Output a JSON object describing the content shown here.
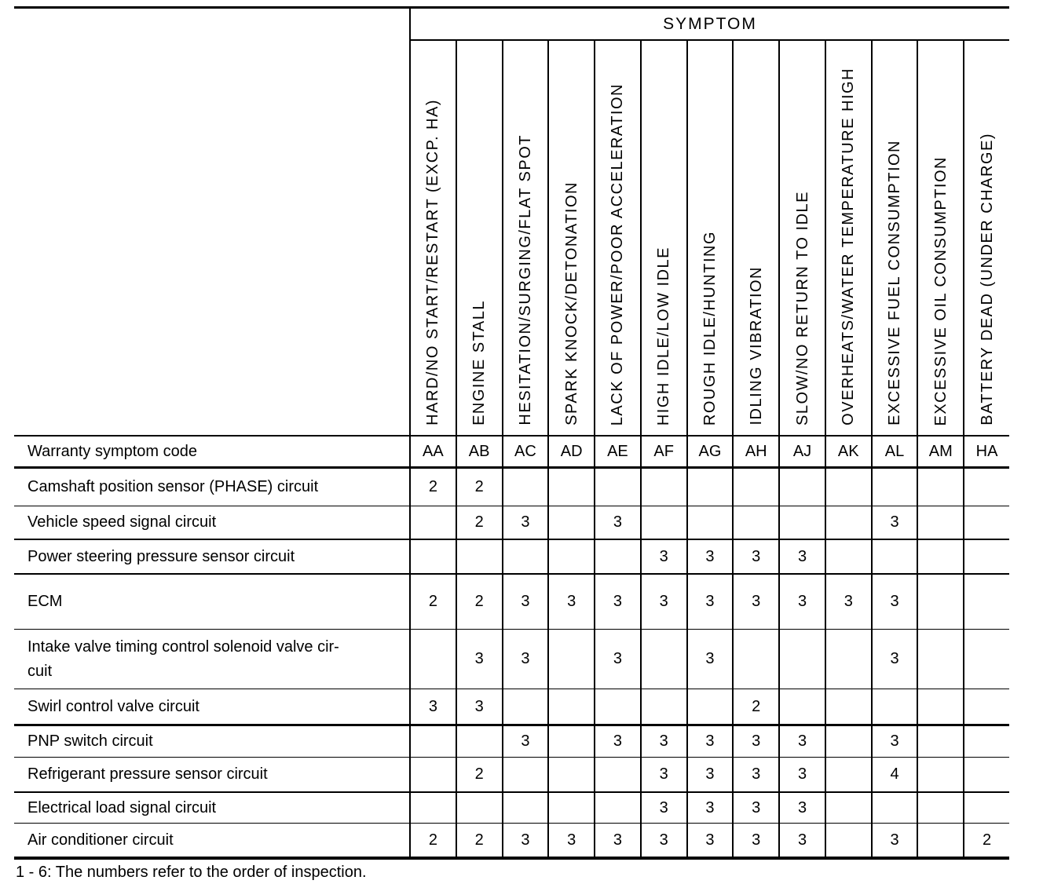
{
  "table": {
    "symptom_header": "SYMPTOM",
    "code_row_label": "Warranty symptom code",
    "columns": [
      {
        "label": "HARD/NO START/RESTART (EXCP. HA)",
        "code": "AA"
      },
      {
        "label": "ENGINE STALL",
        "code": "AB"
      },
      {
        "label": "HESITATION/SURGING/FLAT SPOT",
        "code": "AC"
      },
      {
        "label": "SPARK KNOCK/DETONATION",
        "code": "AD"
      },
      {
        "label": "LACK OF POWER/POOR ACCELERATION",
        "code": "AE"
      },
      {
        "label": "HIGH IDLE/LOW IDLE",
        "code": "AF"
      },
      {
        "label": "ROUGH IDLE/HUNTING",
        "code": "AG"
      },
      {
        "label": "IDLING VIBRATION",
        "code": "AH"
      },
      {
        "label": "SLOW/NO RETURN TO IDLE",
        "code": "AJ"
      },
      {
        "label": "OVERHEATS/WATER TEMPERATURE HIGH",
        "code": "AK"
      },
      {
        "label": "EXCESSIVE FUEL CONSUMPTION",
        "code": "AL"
      },
      {
        "label": "EXCESSIVE OIL CONSUMPTION",
        "code": "AM"
      },
      {
        "label": "BATTERY DEAD (UNDER CHARGE)",
        "code": "HA"
      }
    ],
    "rows": [
      {
        "label": "Camshaft position sensor (PHASE) circuit",
        "values": [
          "2",
          "2",
          "",
          "",
          "",
          "",
          "",
          "",
          "",
          "",
          "",
          "",
          ""
        ]
      },
      {
        "label": "Vehicle speed signal circuit",
        "values": [
          "",
          "2",
          "3",
          "",
          "3",
          "",
          "",
          "",
          "",
          "",
          "3",
          "",
          ""
        ]
      },
      {
        "label": "Power steering pressure sensor circuit",
        "values": [
          "",
          "",
          "",
          "",
          "",
          "3",
          "3",
          "3",
          "3",
          "",
          "",
          "",
          ""
        ]
      },
      {
        "label": "ECM",
        "values": [
          "2",
          "2",
          "3",
          "3",
          "3",
          "3",
          "3",
          "3",
          "3",
          "3",
          "3",
          "",
          ""
        ]
      },
      {
        "label": "Intake valve timing control solenoid valve cir-\ncuit",
        "values": [
          "",
          "3",
          "3",
          "",
          "3",
          "",
          "3",
          "",
          "",
          "",
          "3",
          "",
          ""
        ]
      },
      {
        "label": "Swirl control valve circuit",
        "values": [
          "3",
          "3",
          "",
          "",
          "",
          "",
          "",
          "2",
          "",
          "",
          "",
          "",
          ""
        ]
      },
      {
        "label": "PNP switch circuit",
        "values": [
          "",
          "",
          "3",
          "",
          "3",
          "3",
          "3",
          "3",
          "3",
          "",
          "3",
          "",
          ""
        ]
      },
      {
        "label": "Refrigerant pressure sensor circuit",
        "values": [
          "",
          "2",
          "",
          "",
          "",
          "3",
          "3",
          "3",
          "3",
          "",
          "4",
          "",
          ""
        ]
      },
      {
        "label": "Electrical load signal circuit",
        "values": [
          "",
          "",
          "",
          "",
          "",
          "3",
          "3",
          "3",
          "3",
          "",
          "",
          "",
          ""
        ]
      },
      {
        "label": "Air conditioner circuit",
        "values": [
          "2",
          "2",
          "3",
          "3",
          "3",
          "3",
          "3",
          "3",
          "3",
          "",
          "3",
          "",
          "2"
        ]
      }
    ]
  },
  "footnote": "1 - 6: The numbers refer to the order of inspection."
}
